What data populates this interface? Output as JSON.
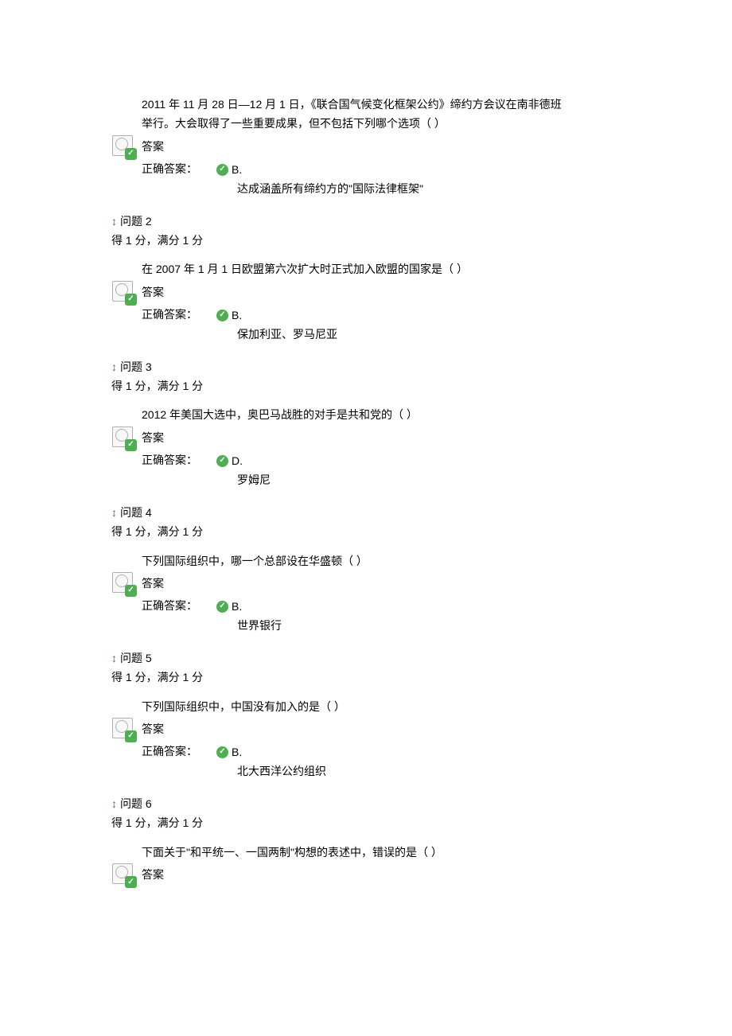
{
  "questions": [
    {
      "text_line1": "2011 年 11 月 28 日—12 月 1 日，《联合国气候变化框架公约》缔约方会议在南非德班",
      "text_line2": "举行。大会取得了一些重要成果，但不包括下列哪个选项（ ）",
      "answer_label": "答案",
      "correct_label": "正确答案：",
      "letter": "B.",
      "answer_content": "达成涵盖所有缔约方的\"国际法律框架\"",
      "next_header": "问题 2",
      "score": "得 1 分，满分 1 分"
    },
    {
      "text_line1": "在 2007 年 1 月 1 日欧盟第六次扩大时正式加入欧盟的国家是（ ）",
      "text_line2": "",
      "answer_label": "答案",
      "correct_label": "正确答案：",
      "letter": "B.",
      "answer_content": "保加利亚、罗马尼亚",
      "next_header": "问题 3",
      "score": "得 1 分，满分 1 分"
    },
    {
      "text_line1": "2012 年美国大选中，奥巴马战胜的对手是共和党的（ ）",
      "text_line2": "",
      "answer_label": "答案",
      "correct_label": "正确答案：",
      "letter": "D.",
      "answer_content": "罗姆尼",
      "next_header": "问题 4",
      "score": "得 1 分，满分 1 分"
    },
    {
      "text_line1": "下列国际组织中，哪一个总部设在华盛顿（ ）",
      "text_line2": "",
      "answer_label": "答案",
      "correct_label": "正确答案：",
      "letter": "B.",
      "answer_content": "世界银行",
      "next_header": "问题 5",
      "score": "得 1 分，满分 1 分"
    },
    {
      "text_line1": "下列国际组织中，中国没有加入的是（ ）",
      "text_line2": "",
      "answer_label": "答案",
      "correct_label": "正确答案：",
      "letter": "B.",
      "answer_content": "北大西洋公约组织",
      "next_header": "问题 6",
      "score": "得 1 分，满分 1 分"
    },
    {
      "text_line1": "下面关于\"和平统一、一国两制\"构想的表述中，错误的是（ ）",
      "text_line2": "",
      "answer_label": "答案",
      "correct_label": "",
      "letter": "",
      "answer_content": "",
      "next_header": "",
      "score": ""
    }
  ]
}
